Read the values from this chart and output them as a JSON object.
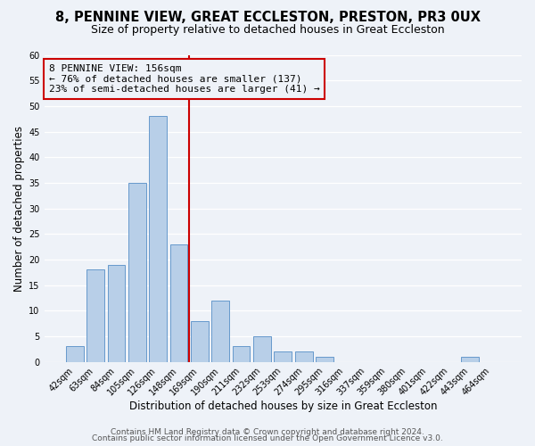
{
  "title": "8, PENNINE VIEW, GREAT ECCLESTON, PRESTON, PR3 0UX",
  "subtitle": "Size of property relative to detached houses in Great Eccleston",
  "xlabel": "Distribution of detached houses by size in Great Eccleston",
  "ylabel": "Number of detached properties",
  "bin_labels": [
    "42sqm",
    "63sqm",
    "84sqm",
    "105sqm",
    "126sqm",
    "148sqm",
    "169sqm",
    "190sqm",
    "211sqm",
    "232sqm",
    "253sqm",
    "274sqm",
    "295sqm",
    "316sqm",
    "337sqm",
    "359sqm",
    "380sqm",
    "401sqm",
    "422sqm",
    "443sqm",
    "464sqm"
  ],
  "bar_heights": [
    3,
    18,
    19,
    35,
    48,
    23,
    8,
    12,
    3,
    5,
    2,
    2,
    1,
    0,
    0,
    0,
    0,
    0,
    0,
    1,
    0
  ],
  "bar_color": "#b8cfe8",
  "bar_edge_color": "#6699cc",
  "vline_x": 5.5,
  "vline_color": "#cc0000",
  "annotation_text": "8 PENNINE VIEW: 156sqm\n← 76% of detached houses are smaller (137)\n23% of semi-detached houses are larger (41) →",
  "annotation_box_edge": "#cc0000",
  "ylim": [
    0,
    60
  ],
  "yticks": [
    0,
    5,
    10,
    15,
    20,
    25,
    30,
    35,
    40,
    45,
    50,
    55,
    60
  ],
  "footer1": "Contains HM Land Registry data © Crown copyright and database right 2024.",
  "footer2": "Contains public sector information licensed under the Open Government Licence v3.0.",
  "background_color": "#eef2f8",
  "grid_color": "#ffffff",
  "title_fontsize": 10.5,
  "subtitle_fontsize": 9,
  "axis_label_fontsize": 8.5,
  "tick_fontsize": 7,
  "annotation_fontsize": 8,
  "footer_fontsize": 6.5
}
